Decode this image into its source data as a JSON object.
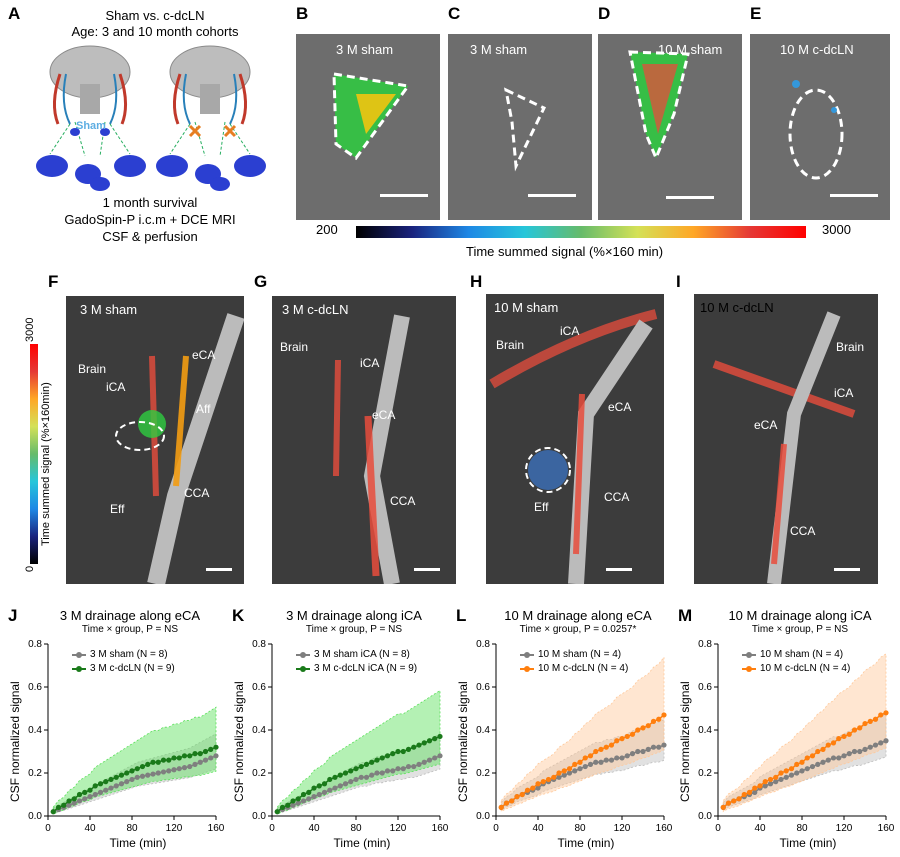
{
  "panel_labels": {
    "A": "A",
    "B": "B",
    "C": "C",
    "D": "D",
    "E": "E",
    "F": "F",
    "G": "G",
    "H": "H",
    "I": "I",
    "J": "J",
    "K": "K",
    "L": "L",
    "M": "M"
  },
  "panel_a": {
    "line1": "Sham vs. c-dcLN",
    "line2": "Age: 3 and 10 month cohorts",
    "sham_tag": "Sham",
    "survival": "1 month survival",
    "method": "GadoSpin-P i.c.m + DCE MRI",
    "measure": "CSF & perfusion"
  },
  "top_images": {
    "b": "3 M sham",
    "c": "3 M sham",
    "d": "10 M sham",
    "e": "10 M c-dcLN"
  },
  "colorbar_h": {
    "min": "200",
    "max": "3000",
    "label": "Time summed signal (%×160 min)"
  },
  "colorbar_v": {
    "max": "3000",
    "min": "0",
    "label": "Time summed signal (%×160min)"
  },
  "mid_images": {
    "f": {
      "title": "3 M sham",
      "brain": "Brain",
      "ica": "iCA",
      "eca": "eCA",
      "aff": "Aff",
      "eff": "Eff",
      "cca": "CCA"
    },
    "g": {
      "title": "3 M c-dcLN",
      "brain": "Brain",
      "ica": "iCA",
      "eca": "eCA",
      "cca": "CCA"
    },
    "h": {
      "title": "10 M sham",
      "brain": "Brain",
      "ica": "iCA",
      "eca": "eCA",
      "eff": "Eff",
      "cca": "CCA"
    },
    "i": {
      "title": "10 M c-dcLN",
      "brain": "Brain",
      "ica": "iCA",
      "eca": "eCA",
      "cca": "CCA"
    }
  },
  "colors": {
    "gray": "#7f7f7f",
    "green": "#1a7a1a",
    "green_band": "#59e059",
    "orange": "#ff7f0e",
    "orange_band": "#ffc899"
  },
  "chart_data": [
    {
      "type": "line",
      "title": "3 M drainage along eCA",
      "subtitle": "Time × group, P = NS",
      "xlabel": "Time (min)",
      "ylabel": "CSF normalized signal",
      "xlim": [
        0,
        160
      ],
      "ylim": [
        0,
        0.8
      ],
      "xticks": [
        "0",
        "40",
        "80",
        "120",
        "160"
      ],
      "yticks": [
        "0.0",
        "0.2",
        "0.4",
        "0.6",
        "0.8"
      ],
      "x": [
        5,
        10,
        15,
        20,
        25,
        30,
        35,
        40,
        45,
        50,
        55,
        60,
        65,
        70,
        75,
        80,
        85,
        90,
        95,
        100,
        105,
        110,
        115,
        120,
        125,
        130,
        135,
        140,
        145,
        150,
        155,
        160
      ],
      "series": [
        {
          "name": "3 M sham (N = 8)",
          "color": "gray",
          "values": [
            0.02,
            0.03,
            0.04,
            0.05,
            0.06,
            0.07,
            0.08,
            0.09,
            0.1,
            0.11,
            0.12,
            0.13,
            0.14,
            0.15,
            0.16,
            0.17,
            0.18,
            0.185,
            0.19,
            0.195,
            0.2,
            0.205,
            0.21,
            0.215,
            0.22,
            0.225,
            0.23,
            0.24,
            0.25,
            0.26,
            0.27,
            0.28
          ]
        },
        {
          "name": "3 M c-dcLN (N = 9)",
          "color": "green",
          "values": [
            0.02,
            0.04,
            0.05,
            0.07,
            0.08,
            0.1,
            0.11,
            0.12,
            0.14,
            0.15,
            0.16,
            0.17,
            0.18,
            0.19,
            0.2,
            0.21,
            0.22,
            0.23,
            0.24,
            0.25,
            0.25,
            0.26,
            0.26,
            0.27,
            0.27,
            0.28,
            0.28,
            0.29,
            0.29,
            0.3,
            0.31,
            0.32
          ]
        }
      ]
    },
    {
      "type": "line",
      "title": "3 M drainage along iCA",
      "subtitle": "Time × group, P = NS",
      "xlabel": "Time (min)",
      "ylabel": "CSF normalized signal",
      "xlim": [
        0,
        160
      ],
      "ylim": [
        0,
        0.8
      ],
      "xticks": [
        "0",
        "40",
        "80",
        "120",
        "160"
      ],
      "yticks": [
        "0.0",
        "0.2",
        "0.4",
        "0.6",
        "0.8"
      ],
      "x": [
        5,
        10,
        15,
        20,
        25,
        30,
        35,
        40,
        45,
        50,
        55,
        60,
        65,
        70,
        75,
        80,
        85,
        90,
        95,
        100,
        105,
        110,
        115,
        120,
        125,
        130,
        135,
        140,
        145,
        150,
        155,
        160
      ],
      "series": [
        {
          "name": "3 M sham iCA (N = 8)",
          "color": "gray",
          "values": [
            0.02,
            0.03,
            0.04,
            0.05,
            0.06,
            0.07,
            0.08,
            0.09,
            0.1,
            0.11,
            0.12,
            0.13,
            0.14,
            0.15,
            0.16,
            0.17,
            0.18,
            0.18,
            0.19,
            0.2,
            0.2,
            0.21,
            0.21,
            0.22,
            0.22,
            0.23,
            0.23,
            0.24,
            0.25,
            0.26,
            0.27,
            0.28
          ]
        },
        {
          "name": "3 M c-dcLN iCA (N = 9)",
          "color": "green",
          "values": [
            0.02,
            0.04,
            0.05,
            0.07,
            0.08,
            0.1,
            0.11,
            0.13,
            0.14,
            0.15,
            0.17,
            0.18,
            0.19,
            0.2,
            0.21,
            0.22,
            0.23,
            0.24,
            0.25,
            0.26,
            0.27,
            0.28,
            0.29,
            0.3,
            0.3,
            0.31,
            0.32,
            0.33,
            0.34,
            0.35,
            0.36,
            0.37
          ]
        }
      ]
    },
    {
      "type": "line",
      "title": "10 M drainage along eCA",
      "subtitle": "Time × group, P = 0.0257*",
      "xlabel": "Time (min)",
      "ylabel": "CSF normalized signal",
      "xlim": [
        0,
        160
      ],
      "ylim": [
        0,
        0.8
      ],
      "xticks": [
        "0",
        "40",
        "80",
        "120",
        "160"
      ],
      "yticks": [
        "0.0",
        "0.2",
        "0.4",
        "0.6",
        "0.8"
      ],
      "x": [
        5,
        10,
        15,
        20,
        25,
        30,
        35,
        40,
        45,
        50,
        55,
        60,
        65,
        70,
        75,
        80,
        85,
        90,
        95,
        100,
        105,
        110,
        115,
        120,
        125,
        130,
        135,
        140,
        145,
        150,
        155,
        160
      ],
      "series": [
        {
          "name": "10 M sham (N = 4)",
          "color": "gray",
          "values": [
            0.04,
            0.06,
            0.07,
            0.09,
            0.1,
            0.11,
            0.12,
            0.13,
            0.15,
            0.16,
            0.17,
            0.18,
            0.19,
            0.2,
            0.21,
            0.22,
            0.23,
            0.24,
            0.25,
            0.25,
            0.26,
            0.26,
            0.27,
            0.27,
            0.28,
            0.29,
            0.3,
            0.3,
            0.31,
            0.32,
            0.32,
            0.33
          ]
        },
        {
          "name": "10 M c-dcLN (N = 4)",
          "color": "orange",
          "values": [
            0.04,
            0.06,
            0.07,
            0.09,
            0.1,
            0.12,
            0.13,
            0.15,
            0.16,
            0.17,
            0.18,
            0.2,
            0.21,
            0.22,
            0.24,
            0.25,
            0.27,
            0.28,
            0.3,
            0.31,
            0.32,
            0.33,
            0.35,
            0.36,
            0.37,
            0.38,
            0.4,
            0.41,
            0.42,
            0.44,
            0.45,
            0.47
          ]
        }
      ]
    },
    {
      "type": "line",
      "title": "10 M drainage along iCA",
      "subtitle": "Time × group, P = NS",
      "xlabel": "Time (min)",
      "ylabel": "CSF normalized signal",
      "xlim": [
        0,
        160
      ],
      "ylim": [
        0,
        0.8
      ],
      "xticks": [
        "0",
        "40",
        "80",
        "120",
        "160"
      ],
      "yticks": [
        "0.0",
        "0.2",
        "0.4",
        "0.6",
        "0.8"
      ],
      "x": [
        5,
        10,
        15,
        20,
        25,
        30,
        35,
        40,
        45,
        50,
        55,
        60,
        65,
        70,
        75,
        80,
        85,
        90,
        95,
        100,
        105,
        110,
        115,
        120,
        125,
        130,
        135,
        140,
        145,
        150,
        155,
        160
      ],
      "series": [
        {
          "name": "10 M sham (N = 4)",
          "color": "gray",
          "values": [
            0.04,
            0.06,
            0.07,
            0.08,
            0.09,
            0.1,
            0.11,
            0.13,
            0.14,
            0.15,
            0.16,
            0.17,
            0.18,
            0.19,
            0.2,
            0.21,
            0.22,
            0.23,
            0.24,
            0.25,
            0.26,
            0.27,
            0.27,
            0.28,
            0.29,
            0.3,
            0.3,
            0.31,
            0.32,
            0.33,
            0.34,
            0.35
          ]
        },
        {
          "name": "10 M c-dcLN (N = 4)",
          "color": "orange",
          "values": [
            0.04,
            0.06,
            0.07,
            0.08,
            0.1,
            0.11,
            0.13,
            0.14,
            0.16,
            0.17,
            0.18,
            0.2,
            0.21,
            0.22,
            0.24,
            0.25,
            0.27,
            0.28,
            0.3,
            0.31,
            0.33,
            0.34,
            0.36,
            0.37,
            0.38,
            0.4,
            0.41,
            0.43,
            0.44,
            0.45,
            0.47,
            0.48
          ]
        }
      ]
    }
  ]
}
